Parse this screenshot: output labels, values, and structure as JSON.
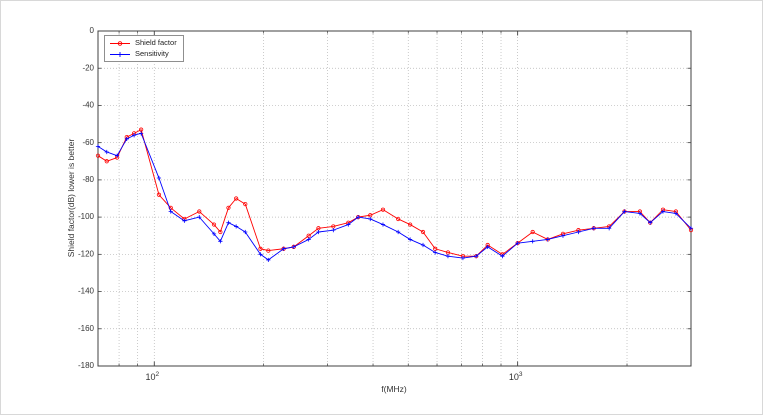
{
  "figure": {
    "title": ""
  },
  "chart_data": {
    "type": "line",
    "title": "",
    "xlabel": "f(MHz)",
    "ylabel": "Shield factor(dB) lower is better",
    "xscale": "log",
    "xlim": [
      70,
      3000
    ],
    "ylim": [
      -180,
      0
    ],
    "yticks": [
      0,
      -20,
      -40,
      -60,
      -80,
      -100,
      -120,
      -140,
      -160,
      -180
    ],
    "xticks": [
      {
        "value": 100,
        "base": "10",
        "exp": "2"
      },
      {
        "value": 1000,
        "base": "10",
        "exp": "3"
      }
    ],
    "grid": true,
    "legend_position": "top-left",
    "grid_color": "#b5b5b5",
    "axis_color": "#404040",
    "x": [
      70,
      74,
      79,
      84,
      88,
      92,
      103,
      111,
      121,
      133,
      146,
      152,
      160,
      168,
      178,
      196,
      206,
      227,
      242,
      266,
      283,
      311,
      342,
      364,
      393,
      426,
      469,
      506,
      549,
      593,
      643,
      707,
      769,
      827,
      908,
      1000,
      1100,
      1210,
      1333,
      1470,
      1620,
      1786,
      1968,
      2170,
      2317,
      2512,
      2726,
      3000
    ],
    "series": [
      {
        "name": "Shield factor",
        "color": "#ff0000",
        "marker": "circle",
        "values": [
          -67,
          -70,
          -68,
          -57,
          -55,
          -53,
          -88,
          -95,
          -101,
          -97,
          -104,
          -108,
          -95,
          -90,
          -93,
          -117,
          -118,
          -117,
          -116,
          -110,
          -106,
          -105,
          -103,
          -100,
          -99,
          -96,
          -101,
          -104,
          -108,
          -117,
          -119,
          -121,
          -121,
          -115,
          -120,
          -114,
          -108,
          -112,
          -109,
          -107,
          -106,
          -105,
          -97,
          -97,
          -103,
          -96,
          -97,
          -107
        ]
      },
      {
        "name": "Sensitivity",
        "color": "#0000ff",
        "marker": "plus",
        "values": [
          -62,
          -65,
          -67,
          -58,
          -56,
          -55,
          -79,
          -97,
          -102,
          -100,
          -109,
          -113,
          -103,
          -105,
          -108,
          -120,
          -123,
          -117,
          -116,
          -112,
          -108,
          -107,
          -104,
          -100,
          -101,
          -104,
          -108,
          -112,
          -115,
          -119,
          -121,
          -122,
          -121,
          -116,
          -121,
          -114,
          -113,
          -112,
          -110,
          -108,
          -106,
          -106,
          -97,
          -98,
          -103,
          -97,
          -98,
          -106
        ]
      }
    ]
  }
}
